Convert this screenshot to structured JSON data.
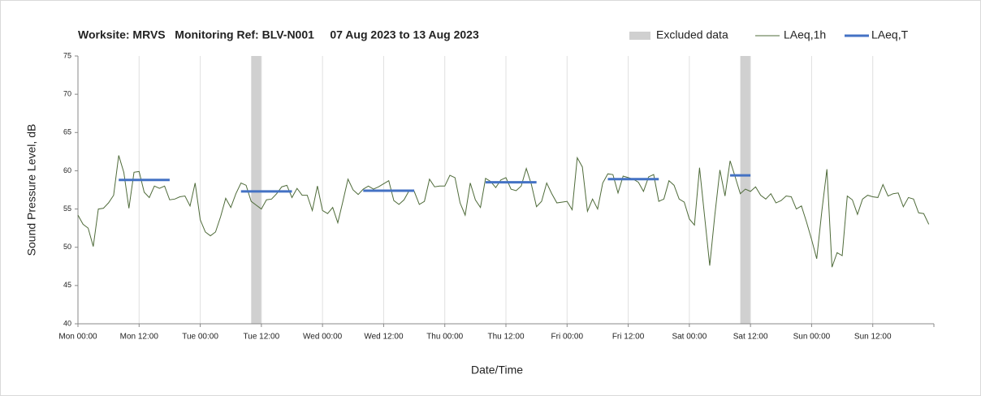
{
  "chart_data": {
    "type": "line",
    "title": "Worksite: MRVS   Monitoring Ref: BLV-N001     07 Aug 2023 to 13 Aug 2023",
    "x_label": "Date/Time",
    "y_label": "Sound Pressure Level, dB",
    "xlim": [
      0,
      168
    ],
    "xticks": [
      {
        "value": 0,
        "label": "Mon 00:00"
      },
      {
        "value": 12,
        "label": "Mon 12:00"
      },
      {
        "value": 24,
        "label": "Tue 00:00"
      },
      {
        "value": 36,
        "label": "Tue 12:00"
      },
      {
        "value": 48,
        "label": "Wed 00:00"
      },
      {
        "value": 60,
        "label": "Wed 12:00"
      },
      {
        "value": 72,
        "label": "Thu 00:00"
      },
      {
        "value": 84,
        "label": "Thu 12:00"
      },
      {
        "value": 96,
        "label": "Fri 00:00"
      },
      {
        "value": 108,
        "label": "Fri 12:00"
      },
      {
        "value": 120,
        "label": "Sat 00:00"
      },
      {
        "value": 132,
        "label": "Sat 12:00"
      },
      {
        "value": 144,
        "label": "Sun 00:00"
      },
      {
        "value": 156,
        "label": "Sun 12:00"
      }
    ],
    "ylim": [
      40,
      75
    ],
    "yticks": [
      40,
      45,
      50,
      55,
      60,
      65,
      70,
      75
    ],
    "grid": "x",
    "legend": "top-right",
    "excluded": {
      "name": "Excluded data",
      "color": "#d0d0d0",
      "ranges": [
        [
          34,
          36
        ],
        [
          130,
          132
        ]
      ]
    },
    "series": [
      {
        "name": "LAeq,1h",
        "color": "#4f6b3a",
        "x": [
          0,
          1,
          2,
          3,
          4,
          5,
          6,
          7,
          8,
          9,
          10,
          11,
          12,
          13,
          14,
          15,
          16,
          17,
          18,
          19,
          20,
          21,
          22,
          23,
          24,
          25,
          26,
          27,
          28,
          29,
          30,
          31,
          32,
          33,
          34,
          35,
          36,
          37,
          38,
          39,
          40,
          41,
          42,
          43,
          44,
          45,
          46,
          47,
          48,
          49,
          50,
          51,
          52,
          53,
          54,
          55,
          56,
          57,
          58,
          59,
          60,
          61,
          62,
          63,
          64,
          65,
          66,
          67,
          68,
          69,
          70,
          71,
          72,
          73,
          74,
          75,
          76,
          77,
          78,
          79,
          80,
          81,
          82,
          83,
          84,
          85,
          86,
          87,
          88,
          89,
          90,
          91,
          92,
          93,
          94,
          95,
          96,
          97,
          98,
          99,
          100,
          101,
          102,
          103,
          104,
          105,
          106,
          107,
          108,
          109,
          110,
          111,
          112,
          113,
          114,
          115,
          116,
          117,
          118,
          119,
          120,
          121,
          122,
          123,
          124,
          125,
          126,
          127,
          128,
          129,
          130,
          131,
          132,
          133,
          134,
          135,
          136,
          137,
          138,
          139,
          140,
          141,
          142,
          143,
          144,
          145,
          146,
          147,
          148,
          149,
          150,
          151,
          152,
          153,
          154,
          155,
          156,
          157,
          158,
          159,
          160,
          161,
          162,
          163,
          164,
          165,
          166,
          167
        ],
        "values": [
          54.2,
          53,
          52.5,
          50.1,
          55,
          55.1,
          55.8,
          56.8,
          62,
          59.8,
          55.1,
          59.8,
          59.9,
          57.2,
          56.5,
          58,
          57.7,
          58,
          56.2,
          56.3,
          56.6,
          56.7,
          55.4,
          58.4,
          53.6,
          52,
          51.5,
          52,
          54,
          56.4,
          55.2,
          57,
          58.4,
          58.1,
          56,
          55.5,
          55,
          56.2,
          56.3,
          57,
          57.9,
          58.1,
          56.5,
          57.7,
          56.8,
          56.8,
          54.8,
          58,
          54.8,
          54.4,
          55.2,
          53.2,
          56,
          58.9,
          57.5,
          56.9,
          57.6,
          58,
          57.6,
          57.9,
          58.3,
          58.7,
          56.1,
          55.6,
          56.2,
          57.4,
          57.3,
          55.6,
          56,
          58.9,
          57.9,
          58,
          58,
          59.4,
          59.1,
          55.8,
          54.2,
          58.4,
          56.2,
          55.2,
          59,
          58.6,
          57.8,
          58.8,
          59.1,
          57.6,
          57.4,
          58,
          60.3,
          58.2,
          55.3,
          56,
          58.4,
          57,
          55.8,
          55.9,
          56,
          54.9,
          61.7,
          60.5,
          54.7,
          56.3,
          55,
          58.4,
          59.6,
          59.5,
          57.1,
          59.3,
          59.1,
          58.9,
          58.5,
          57.3,
          59.2,
          59.5,
          56,
          56.3,
          58.7,
          58.1,
          56.3,
          55.9,
          53.7,
          52.9,
          60.4,
          54,
          47.6,
          54.2,
          60.1,
          56.7,
          61.3,
          59.2,
          57,
          57.6,
          57.3,
          57.9,
          56.8,
          56.3,
          57,
          55.8,
          56.1,
          56.7,
          56.6,
          55,
          55.4,
          53.3,
          51,
          48.5,
          54.7,
          60.2,
          47.4,
          49.3,
          48.9,
          56.7,
          56.2,
          54.3,
          56.3,
          56.8,
          56.6,
          56.5,
          58.2,
          56.7,
          57,
          57.1,
          55.3,
          56.5,
          56.3,
          54.5,
          54.4,
          53
        ]
      },
      {
        "name": "LAeq,T",
        "color": "#4472c4",
        "x_start": [
          8,
          32,
          56,
          80,
          104,
          128
        ],
        "x_end": [
          18,
          42,
          66,
          90,
          114,
          132
        ],
        "values": [
          58.8,
          57.3,
          57.4,
          58.5,
          58.9,
          59.4
        ]
      }
    ]
  }
}
